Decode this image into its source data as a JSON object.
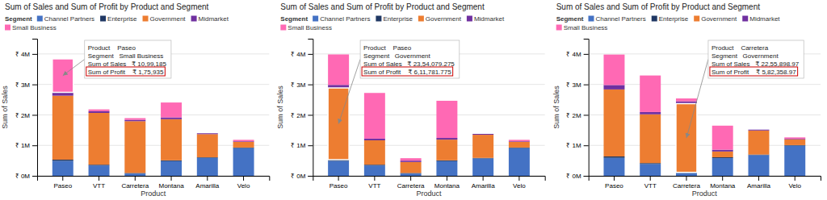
{
  "chart_data": [
    {
      "type": "bar",
      "stacked": true,
      "title": "Sum of Sales and Sum of Profit by Product and Segment",
      "x_label": "Product",
      "y_label": "Sum of Sales",
      "categories": [
        "Paseo",
        "VTT",
        "Carretera",
        "Montana",
        "Amarilla",
        "Velo"
      ],
      "legend": "upper left",
      "legend_title": "Segment",
      "series": [
        {
          "name": "Channel Partners",
          "color": "#4472C4",
          "values": [
            490000,
            340000,
            75000,
            480000,
            590000,
            910000
          ]
        },
        {
          "name": "Enterprise",
          "color": "#203864",
          "values": [
            40000,
            25000,
            18000,
            28000,
            18000,
            18000
          ]
        },
        {
          "name": "Government",
          "color": "#ED7D31",
          "values": [
            2100000,
            1700000,
            1700000,
            1350000,
            760000,
            190000
          ]
        },
        {
          "name": "Midmarket",
          "color": "#7030A0",
          "values": [
            110000,
            55000,
            45000,
            58000,
            28000,
            18000
          ]
        },
        {
          "name": "Small Business",
          "color": "#FF69B4",
          "values": [
            1099185,
            60000,
            55000,
            490000,
            0,
            45000
          ]
        }
      ],
      "ylim": [
        0,
        4500000
      ],
      "yticks": [
        {
          "value": 0,
          "label": "₹ 0M"
        },
        {
          "value": 1000000,
          "label": "₹ 1M"
        },
        {
          "value": 2000000,
          "label": "₹ 2M"
        },
        {
          "value": 3000000,
          "label": "₹ 3M"
        },
        {
          "value": 4000000,
          "label": "₹ 4M"
        }
      ],
      "grid": true,
      "annotations": [
        {
          "category": "Paseo",
          "series": "Small Business",
          "text": [
            "Product    Paseo",
            "Segment   Small Business",
            "Sum of Sales   ₹ 10,99,185",
            "Sum of Profit    ₹ 1,75,935"
          ]
        }
      ]
    },
    {
      "type": "bar",
      "stacked": true,
      "title": "Sum of Sales and Sum of Profit by Product and Segment",
      "x_label": "Product",
      "y_label": "Sum of Sales",
      "categories": [
        "Paseo",
        "VTT",
        "Carretera",
        "Montana",
        "Amarilla",
        "Velo"
      ],
      "legend": "upper left",
      "legend_title": "Segment",
      "series": [
        {
          "name": "Channel Partners",
          "color": "#4472C4",
          "values": [
            490000,
            340000,
            75000,
            480000,
            570000,
            910000
          ]
        },
        {
          "name": "Enterprise",
          "color": "#203864",
          "values": [
            40000,
            25000,
            18000,
            28000,
            18000,
            18000
          ]
        },
        {
          "name": "Government",
          "color": "#ED7D31",
          "values": [
            2354079,
            800000,
            360000,
            680000,
            760000,
            190000
          ]
        },
        {
          "name": "Midmarket",
          "color": "#7030A0",
          "values": [
            100000,
            55000,
            45000,
            55000,
            28000,
            18000
          ]
        },
        {
          "name": "Small Business",
          "color": "#FF69B4",
          "values": [
            1000000,
            1500000,
            80000,
            1220000,
            0,
            45000
          ]
        }
      ],
      "ylim": [
        0,
        4500000
      ],
      "yticks": [
        {
          "value": 0,
          "label": "₹ 0M"
        },
        {
          "value": 1000000,
          "label": "₹ 1M"
        },
        {
          "value": 2000000,
          "label": "₹ 2M"
        },
        {
          "value": 3000000,
          "label": "₹ 3M"
        },
        {
          "value": 4000000,
          "label": "₹ 4M"
        }
      ],
      "grid": true,
      "annotations": [
        {
          "category": "Paseo",
          "series": "Government",
          "text": [
            "Product    Paseo",
            "Segment   Government",
            "Sum of Sales   ₹ 23,54,079.275",
            "Sum of Profit    ₹ 6,11,781.775"
          ]
        }
      ]
    },
    {
      "type": "bar",
      "stacked": true,
      "title": "Sum of Sales and Sum of Profit by Product and Segment",
      "x_label": "Product",
      "y_label": "Sum of Sales",
      "categories": [
        "Paseo",
        "VTT",
        "Carretera",
        "Montana",
        "Amarilla",
        "Velo"
      ],
      "legend": "upper left",
      "legend_title": "Segment",
      "series": [
        {
          "name": "Channel Partners",
          "color": "#4472C4",
          "values": [
            590000,
            390000,
            95000,
            580000,
            680000,
            990000
          ]
        },
        {
          "name": "Enterprise",
          "color": "#203864",
          "values": [
            45000,
            28000,
            18000,
            28000,
            18000,
            18000
          ]
        },
        {
          "name": "Government",
          "color": "#ED7D31",
          "values": [
            2200000,
            1600000,
            2255899,
            190000,
            790000,
            190000
          ]
        },
        {
          "name": "Midmarket",
          "color": "#7030A0",
          "values": [
            145000,
            75000,
            75000,
            58000,
            28000,
            18000
          ]
        },
        {
          "name": "Small Business",
          "color": "#FF69B4",
          "values": [
            1000000,
            1200000,
            95000,
            790000,
            0,
            45000
          ]
        }
      ],
      "ylim": [
        0,
        4500000
      ],
      "yticks": [
        {
          "value": 0,
          "label": "₹ 0M"
        },
        {
          "value": 1000000,
          "label": "₹ 1M"
        },
        {
          "value": 2000000,
          "label": "₹ 2M"
        },
        {
          "value": 3000000,
          "label": "₹ 3M"
        },
        {
          "value": 4000000,
          "label": "₹ 4M"
        }
      ],
      "grid": true,
      "annotations": [
        {
          "category": "Carretera",
          "series": "Government",
          "text": [
            "Product    Carretera",
            "Segment   Government",
            "Sum of Sales   ₹ 22,55,898.97",
            "Sum of Profit    ₹ 5,82,358.97"
          ]
        }
      ]
    }
  ]
}
